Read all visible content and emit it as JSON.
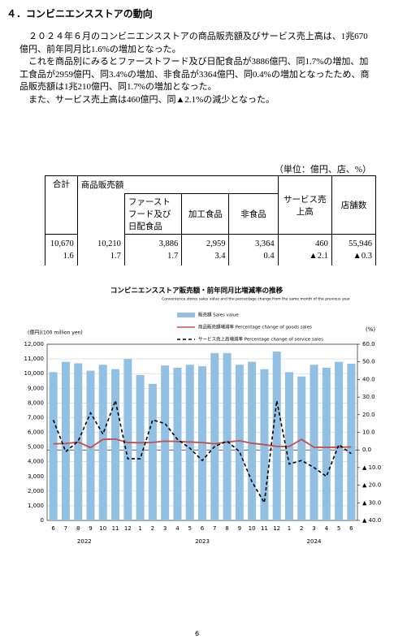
{
  "heading": "４．コンビニエンスストアの動向",
  "paragraphs": [
    "２０２４年６月のコンビニエンスストアの商品販売額及びサービス売上高は、1兆670億円、前年同月比1.6%の増加となった。",
    "これを商品別にみるとファーストフード及び日配食品が3886億円、同1.7%の増加、加工食品が2959億円、同3.4%の増加、非食品が3364億円、同0.4%の増加となったため、商品販売額は1兆210億円、同1.7%の増加となった。",
    "また、サービス売上高は460億円、同▲2.1%の減少となった。"
  ],
  "table": {
    "unit": "（単位：億円、店、%）",
    "header_top": [
      "合計",
      "商品販売額",
      "サービス売上高",
      "店舗数"
    ],
    "header_sub": [
      "ファーストフード及び日配食品",
      "加工食品",
      "非食品"
    ],
    "rows": [
      [
        "10,670",
        "10,210",
        "3,886",
        "2,959",
        "3,364",
        "460",
        "55,946"
      ],
      [
        "1.6",
        "1.7",
        "1.7",
        "3.4",
        "0.4",
        "▲2.1",
        "▲0.3"
      ]
    ]
  },
  "chart_data": {
    "type": "bar",
    "title": "コンビニエンスストア販売額・前年同月比増減率の推移",
    "subtitle": "Convenience stores sales value and the percentage change from the same month of the previous year",
    "y_label": "(億円)(100 million yen)",
    "y2_label": "(%)",
    "categories": [
      "6",
      "7",
      "8",
      "9",
      "10",
      "11",
      "12",
      "1",
      "2",
      "3",
      "4",
      "5",
      "6",
      "7",
      "8",
      "9",
      "10",
      "11",
      "12",
      "1",
      "2",
      "3",
      "4",
      "5",
      "6"
    ],
    "year_labels": [
      "2022",
      "2023",
      "2024"
    ],
    "series": [
      {
        "name": "販売額 Sales value",
        "type": "bar",
        "color": "#92c0e2",
        "values": [
          10100,
          10800,
          10700,
          10200,
          10600,
          10300,
          11000,
          9900,
          9300,
          10550,
          10400,
          10600,
          10500,
          11400,
          11400,
          10600,
          10800,
          10300,
          11500,
          10100,
          9800,
          10600,
          10400,
          10800,
          10670
        ]
      },
      {
        "name": "商品販売額増減率 Percentage change of goods sales",
        "type": "line",
        "axis": "y2",
        "color": "#c0504d",
        "linestyle": "solid",
        "values": [
          3.5,
          3.6,
          4.5,
          1.3,
          6.0,
          6.2,
          4.2,
          4.1,
          4.3,
          5.0,
          4.8,
          4.5,
          4.2,
          3.5,
          4.5,
          5.2,
          3.8,
          3.0,
          2.0,
          2.0,
          6.0,
          1.5,
          1.5,
          1.5,
          1.7
        ]
      },
      {
        "name": "サービス売上高増減率 Percentage change of service sales",
        "type": "line",
        "axis": "y2",
        "color": "#000000",
        "linestyle": "dashed",
        "values": [
          17,
          -1,
          5,
          21,
          9,
          28,
          -5,
          -5,
          17,
          15,
          6,
          1,
          -6,
          2,
          5,
          -1,
          -18,
          -30,
          28,
          -8,
          -6,
          -10,
          -15,
          3,
          -2.1
        ]
      }
    ],
    "ylim": [
      0,
      12000
    ],
    "yticks": [
      0,
      {
        "value": 1000,
        "label": "1,000"
      },
      {
        "value": 2000,
        "label": "2,000"
      },
      {
        "value": 3000,
        "label": "3,000"
      },
      {
        "value": 4000,
        "label": "4,000"
      },
      {
        "value": 5000,
        "label": "5,000"
      },
      {
        "value": 6000,
        "label": "6,000"
      },
      {
        "value": 7000,
        "label": "7,000"
      },
      {
        "value": 8000,
        "label": "8,000"
      },
      {
        "value": 9000,
        "label": "9,000"
      },
      {
        "value": 10000,
        "label": "10,000"
      },
      {
        "value": 11000,
        "label": "11,000"
      },
      {
        "value": 12000,
        "label": "12,000"
      }
    ],
    "y2lim": [
      -40,
      60
    ],
    "y2ticks": [
      {
        "value": -40,
        "label": "▲ 40.0"
      },
      {
        "value": -30,
        "label": "▲ 30.0"
      },
      {
        "value": -20,
        "label": "▲ 20.0"
      },
      {
        "value": -10,
        "label": "▲ 10.0"
      },
      {
        "value": 0,
        "label": "0.0"
      },
      {
        "value": 10,
        "label": "10.0"
      },
      {
        "value": 20,
        "label": "20.0"
      },
      {
        "value": 30,
        "label": "30.0"
      },
      {
        "value": 40,
        "label": "40.0"
      },
      {
        "value": 50,
        "label": "50.0"
      },
      {
        "value": 60,
        "label": "60.0"
      }
    ],
    "grid": true
  },
  "page_number": "6"
}
